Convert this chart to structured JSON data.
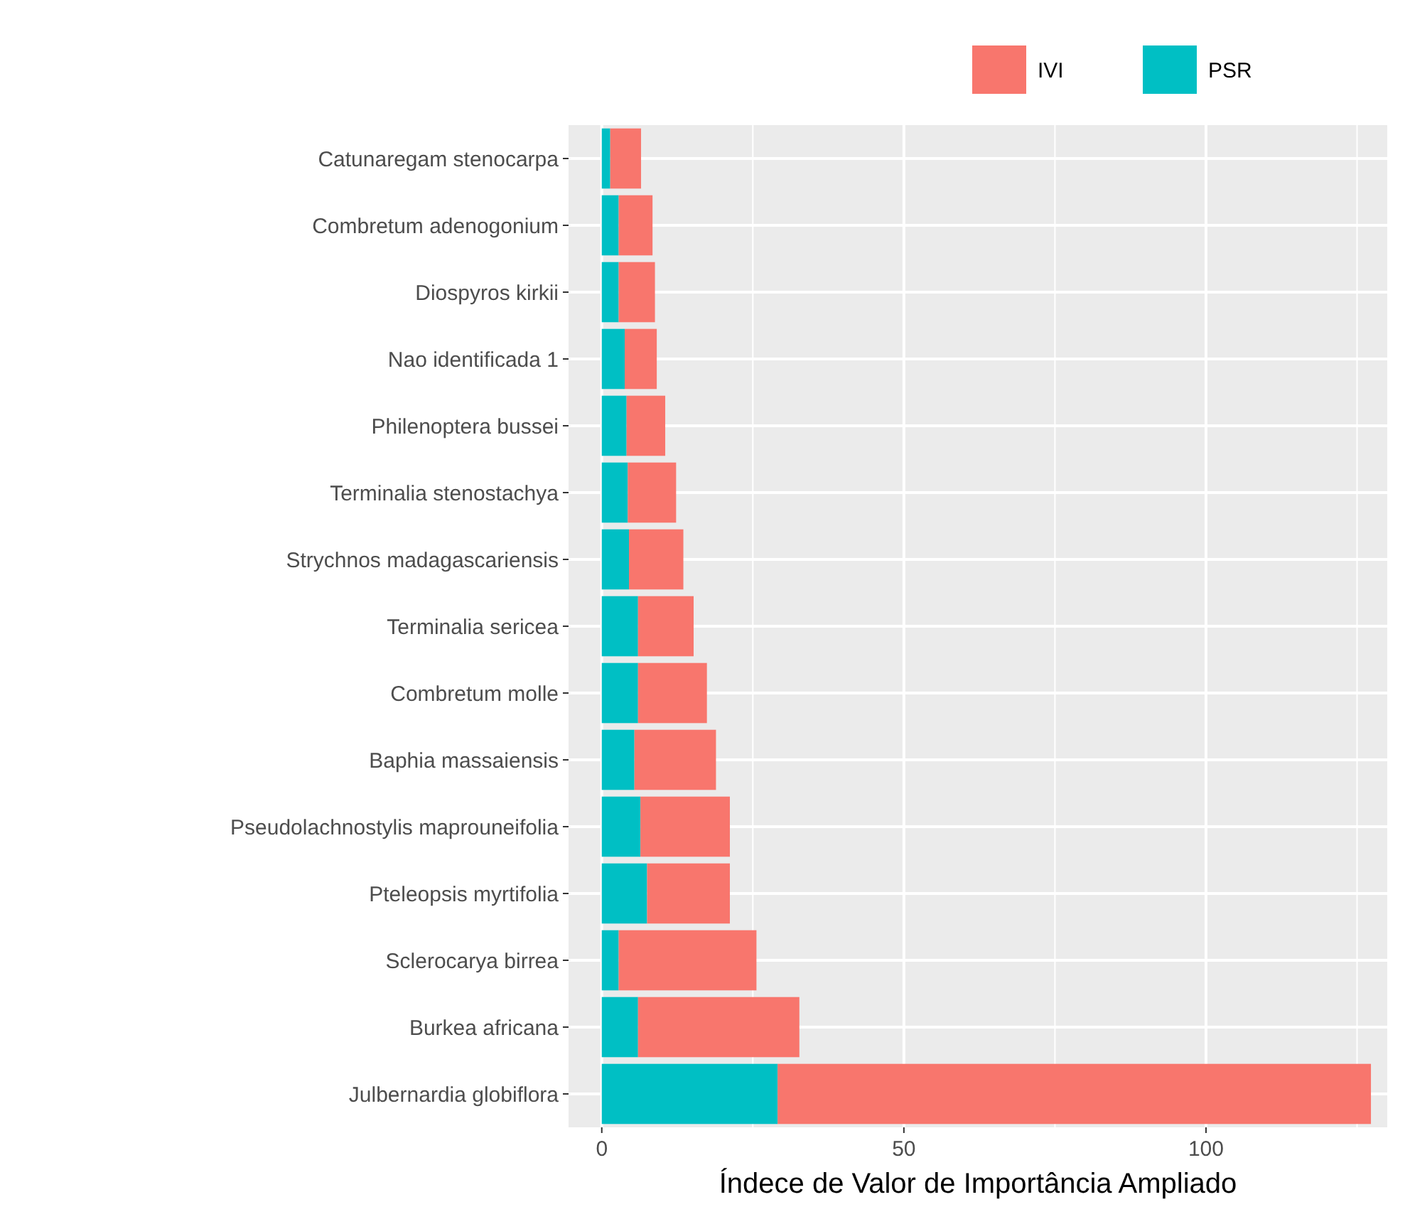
{
  "chart_data": {
    "type": "bar",
    "orientation": "horizontal",
    "stacked": true,
    "xlabel": "Índece de Valor de Importância Ampliado",
    "categories": [
      "Catunaregam stenocarpa",
      "Combretum adenogonium",
      "Diospyros kirkii",
      "Nao identificada 1",
      "Philenoptera bussei",
      "Terminalia stenostachya",
      "Strychnos madagascariensis",
      "Terminalia sericea",
      "Combretum molle",
      "Baphia massaiensis",
      "Pseudolachnostylis maprouneifolia",
      "Pteleopsis myrtifolia",
      "Sclerocarya birrea",
      "Burkea africana",
      "Julbernardia globiflora"
    ],
    "series": [
      {
        "name": "PSR",
        "color": "#00bfc4",
        "values": [
          1.4,
          2.8,
          2.8,
          3.8,
          4.1,
          4.3,
          4.5,
          6.0,
          6.0,
          5.4,
          6.4,
          7.5,
          2.8,
          6.0,
          29.1
        ]
      },
      {
        "name": "IVI",
        "color": "#f8766d",
        "values": [
          5.1,
          5.6,
          6.0,
          5.3,
          6.4,
          8.0,
          9.0,
          9.2,
          11.4,
          13.5,
          14.8,
          13.7,
          22.8,
          26.7,
          98.2
        ]
      }
    ],
    "xlim": [
      -5.5,
      130
    ],
    "xticks": [
      0,
      50,
      100
    ],
    "grid": true,
    "legend": "top right"
  }
}
